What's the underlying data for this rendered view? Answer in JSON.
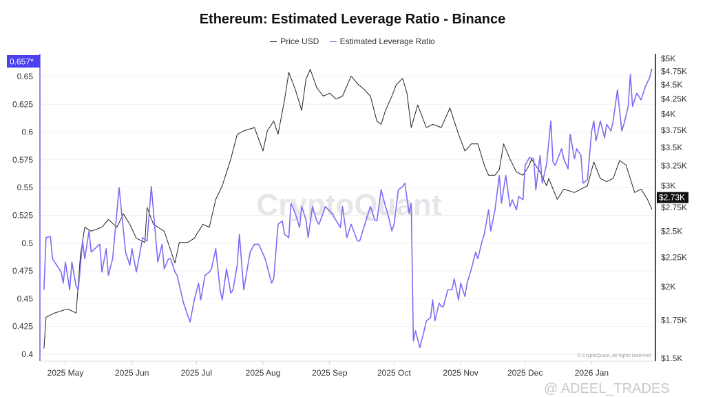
{
  "chart_data": {
    "type": "line",
    "title": "Ethereum: Estimated Leverage Ratio - Binance",
    "legend_position": "top",
    "grid": true,
    "x_ticks": [
      "2025 May",
      "2025 Jun",
      "2025 Jul",
      "2025 Aug",
      "2025 Sep",
      "2025 Oct",
      "2025 Nov",
      "2025 Dec",
      "2026 Jan"
    ],
    "x_tick_dates": [
      "2025-05-01",
      "2025-06-01",
      "2025-07-01",
      "2025-08-01",
      "2025-09-01",
      "2025-10-01",
      "2025-11-01",
      "2025-12-01",
      "2026-01-01"
    ],
    "left_axis": {
      "ticks": [
        "0.4",
        "0.425",
        "0.45",
        "0.475",
        "0.5",
        "0.525",
        "0.55",
        "0.575",
        "0.6",
        "0.625",
        "0.65"
      ],
      "range": [
        0.4,
        0.657
      ],
      "current_label": "0.657*"
    },
    "right_axis": {
      "scale": "log",
      "ticks": [
        "$1.5K",
        "$1.75K",
        "$2K",
        "$2.25K",
        "$2.5K",
        "$2.75K",
        "$3K",
        "$3.25K",
        "$3.5K",
        "$3.75K",
        "$4K",
        "$4.25K",
        "$4.5K",
        "$4.75K",
        "$5K"
      ],
      "tick_values": [
        1.5,
        1.75,
        2,
        2.25,
        2.5,
        2.75,
        3,
        3.25,
        3.5,
        3.75,
        4,
        4.25,
        4.5,
        4.75,
        5
      ],
      "range": [
        1.5,
        5
      ],
      "current_label": "$2.73K"
    },
    "series": [
      {
        "name": "Price USD",
        "axis": "right",
        "unit": "K USD",
        "color": "#222222",
        "points": [
          [
            "2025-04-21",
            1.56
          ],
          [
            "2025-04-22",
            1.77
          ],
          [
            "2025-04-26",
            1.8
          ],
          [
            "2025-05-02",
            1.83
          ],
          [
            "2025-05-06",
            1.8
          ],
          [
            "2025-05-08",
            2.27
          ],
          [
            "2025-05-10",
            2.54
          ],
          [
            "2025-05-13",
            2.5
          ],
          [
            "2025-05-18",
            2.54
          ],
          [
            "2025-05-21",
            2.62
          ],
          [
            "2025-05-25",
            2.54
          ],
          [
            "2025-05-28",
            2.68
          ],
          [
            "2025-05-31",
            2.57
          ],
          [
            "2025-06-03",
            2.43
          ],
          [
            "2025-06-07",
            2.39
          ],
          [
            "2025-06-08",
            2.75
          ],
          [
            "2025-06-11",
            2.57
          ],
          [
            "2025-06-16",
            2.5
          ],
          [
            "2025-06-21",
            2.2
          ],
          [
            "2025-06-23",
            2.39
          ],
          [
            "2025-06-27",
            2.39
          ],
          [
            "2025-06-30",
            2.43
          ],
          [
            "2025-07-04",
            2.57
          ],
          [
            "2025-07-07",
            2.54
          ],
          [
            "2025-07-10",
            2.84
          ],
          [
            "2025-07-13",
            3.0
          ],
          [
            "2025-07-17",
            3.34
          ],
          [
            "2025-07-20",
            3.69
          ],
          [
            "2025-07-23",
            3.74
          ],
          [
            "2025-07-28",
            3.79
          ],
          [
            "2025-08-01",
            3.45
          ],
          [
            "2025-08-03",
            3.74
          ],
          [
            "2025-08-06",
            3.89
          ],
          [
            "2025-08-08",
            3.69
          ],
          [
            "2025-08-11",
            4.23
          ],
          [
            "2025-08-13",
            4.73
          ],
          [
            "2025-08-16",
            4.42
          ],
          [
            "2025-08-19",
            4.06
          ],
          [
            "2025-08-21",
            4.6
          ],
          [
            "2025-08-23",
            4.79
          ],
          [
            "2025-08-26",
            4.45
          ],
          [
            "2025-08-29",
            4.3
          ],
          [
            "2025-09-01",
            4.35
          ],
          [
            "2025-09-04",
            4.25
          ],
          [
            "2025-09-07",
            4.3
          ],
          [
            "2025-09-11",
            4.66
          ],
          [
            "2025-09-14",
            4.52
          ],
          [
            "2025-09-17",
            4.42
          ],
          [
            "2025-09-20",
            4.3
          ],
          [
            "2025-09-23",
            3.89
          ],
          [
            "2025-09-25",
            3.84
          ],
          [
            "2025-09-27",
            4.06
          ],
          [
            "2025-09-30",
            4.3
          ],
          [
            "2025-10-02",
            4.5
          ],
          [
            "2025-10-05",
            4.62
          ],
          [
            "2025-10-07",
            4.35
          ],
          [
            "2025-10-09",
            3.79
          ],
          [
            "2025-10-12",
            4.15
          ],
          [
            "2025-10-16",
            3.79
          ],
          [
            "2025-10-19",
            3.84
          ],
          [
            "2025-10-23",
            3.79
          ],
          [
            "2025-10-27",
            4.1
          ],
          [
            "2025-10-31",
            3.69
          ],
          [
            "2025-11-03",
            3.45
          ],
          [
            "2025-11-06",
            3.55
          ],
          [
            "2025-11-09",
            3.55
          ],
          [
            "2025-11-12",
            3.26
          ],
          [
            "2025-11-14",
            3.13
          ],
          [
            "2025-11-17",
            3.13
          ],
          [
            "2025-11-19",
            3.2
          ],
          [
            "2025-11-21",
            3.55
          ],
          [
            "2025-11-24",
            3.34
          ],
          [
            "2025-11-27",
            3.17
          ],
          [
            "2025-11-30",
            3.13
          ],
          [
            "2025-12-03",
            3.26
          ],
          [
            "2025-12-04",
            3.34
          ],
          [
            "2025-12-08",
            3.17
          ],
          [
            "2025-12-11",
            3.0
          ],
          [
            "2025-12-12",
            3.09
          ],
          [
            "2025-12-16",
            2.84
          ],
          [
            "2025-12-19",
            2.96
          ],
          [
            "2025-12-24",
            2.92
          ],
          [
            "2025-12-30",
            3.0
          ],
          [
            "2026-01-02",
            3.3
          ],
          [
            "2026-01-05",
            3.09
          ],
          [
            "2026-01-08",
            3.05
          ],
          [
            "2026-01-11",
            3.09
          ],
          [
            "2026-01-14",
            3.32
          ],
          [
            "2026-01-17",
            3.26
          ],
          [
            "2026-01-21",
            2.92
          ],
          [
            "2026-01-24",
            2.96
          ],
          [
            "2026-01-27",
            2.84
          ],
          [
            "2026-01-29",
            2.73
          ]
        ]
      },
      {
        "name": "Estimated Leverage Ratio",
        "axis": "left",
        "color": "#7b6cf6",
        "points": [
          [
            "2025-04-21",
            0.458
          ],
          [
            "2025-04-22",
            0.505
          ],
          [
            "2025-04-24",
            0.506
          ],
          [
            "2025-04-25",
            0.486
          ],
          [
            "2025-04-29",
            0.474
          ],
          [
            "2025-04-30",
            0.464
          ],
          [
            "2025-05-01",
            0.483
          ],
          [
            "2025-05-03",
            0.458
          ],
          [
            "2025-05-04",
            0.483
          ],
          [
            "2025-05-06",
            0.461
          ],
          [
            "2025-05-07",
            0.458
          ],
          [
            "2025-05-09",
            0.502
          ],
          [
            "2025-05-10",
            0.486
          ],
          [
            "2025-05-12",
            0.511
          ],
          [
            "2025-05-13",
            0.492
          ],
          [
            "2025-05-17",
            0.499
          ],
          [
            "2025-05-18",
            0.474
          ],
          [
            "2025-05-20",
            0.495
          ],
          [
            "2025-05-21",
            0.471
          ],
          [
            "2025-05-23",
            0.486
          ],
          [
            "2025-05-26",
            0.55
          ],
          [
            "2025-05-29",
            0.492
          ],
          [
            "2025-05-31",
            0.48
          ],
          [
            "2025-06-01",
            0.495
          ],
          [
            "2025-06-03",
            0.474
          ],
          [
            "2025-06-06",
            0.505
          ],
          [
            "2025-06-08",
            0.502
          ],
          [
            "2025-06-10",
            0.551
          ],
          [
            "2025-06-13",
            0.483
          ],
          [
            "2025-06-15",
            0.499
          ],
          [
            "2025-06-16",
            0.477
          ],
          [
            "2025-06-18",
            0.486
          ],
          [
            "2025-06-19",
            0.486
          ],
          [
            "2025-06-21",
            0.474
          ],
          [
            "2025-06-22",
            0.471
          ],
          [
            "2025-06-25",
            0.446
          ],
          [
            "2025-06-28",
            0.429
          ],
          [
            "2025-06-30",
            0.449
          ],
          [
            "2025-07-02",
            0.464
          ],
          [
            "2025-07-03",
            0.449
          ],
          [
            "2025-07-05",
            0.471
          ],
          [
            "2025-07-07",
            0.474
          ],
          [
            "2025-07-08",
            0.477
          ],
          [
            "2025-07-10",
            0.495
          ],
          [
            "2025-07-12",
            0.458
          ],
          [
            "2025-07-13",
            0.449
          ],
          [
            "2025-07-15",
            0.477
          ],
          [
            "2025-07-17",
            0.455
          ],
          [
            "2025-07-18",
            0.458
          ],
          [
            "2025-07-20",
            0.48
          ],
          [
            "2025-07-21",
            0.508
          ],
          [
            "2025-07-23",
            0.458
          ],
          [
            "2025-07-26",
            0.492
          ],
          [
            "2025-07-28",
            0.499
          ],
          [
            "2025-07-30",
            0.499
          ],
          [
            "2025-08-02",
            0.486
          ],
          [
            "2025-08-05",
            0.464
          ],
          [
            "2025-08-06",
            0.468
          ],
          [
            "2025-08-08",
            0.517
          ],
          [
            "2025-08-10",
            0.52
          ],
          [
            "2025-08-11",
            0.508
          ],
          [
            "2025-08-13",
            0.505
          ],
          [
            "2025-08-14",
            0.536
          ],
          [
            "2025-08-16",
            0.527
          ],
          [
            "2025-08-18",
            0.514
          ],
          [
            "2025-08-19",
            0.533
          ],
          [
            "2025-08-21",
            0.521
          ],
          [
            "2025-08-22",
            0.505
          ],
          [
            "2025-08-24",
            0.533
          ],
          [
            "2025-08-26",
            0.52
          ],
          [
            "2025-08-27",
            0.517
          ],
          [
            "2025-08-29",
            0.527
          ],
          [
            "2025-08-30",
            0.533
          ],
          [
            "2025-09-02",
            0.527
          ],
          [
            "2025-09-06",
            0.514
          ],
          [
            "2025-09-07",
            0.533
          ],
          [
            "2025-09-09",
            0.505
          ],
          [
            "2025-09-11",
            0.517
          ],
          [
            "2025-09-14",
            0.502
          ],
          [
            "2025-09-15",
            0.502
          ],
          [
            "2025-09-19",
            0.527
          ],
          [
            "2025-09-20",
            0.533
          ],
          [
            "2025-09-22",
            0.521
          ],
          [
            "2025-09-23",
            0.52
          ],
          [
            "2025-09-25",
            0.548
          ],
          [
            "2025-09-27",
            0.533
          ],
          [
            "2025-09-28",
            0.527
          ],
          [
            "2025-09-30",
            0.511
          ],
          [
            "2025-10-01",
            0.517
          ],
          [
            "2025-10-03",
            0.548
          ],
          [
            "2025-10-05",
            0.551
          ],
          [
            "2025-10-06",
            0.554
          ],
          [
            "2025-10-08",
            0.527
          ],
          [
            "2025-10-09",
            0.536
          ],
          [
            "2025-10-10",
            0.412
          ],
          [
            "2025-10-11",
            0.421
          ],
          [
            "2025-10-13",
            0.406
          ],
          [
            "2025-10-15",
            0.421
          ],
          [
            "2025-10-16",
            0.43
          ],
          [
            "2025-10-18",
            0.433
          ],
          [
            "2025-10-19",
            0.449
          ],
          [
            "2025-10-20",
            0.43
          ],
          [
            "2025-10-22",
            0.446
          ],
          [
            "2025-10-23",
            0.443
          ],
          [
            "2025-10-24",
            0.443
          ],
          [
            "2025-10-26",
            0.458
          ],
          [
            "2025-10-28",
            0.458
          ],
          [
            "2025-10-29",
            0.468
          ],
          [
            "2025-10-31",
            0.449
          ],
          [
            "2025-11-01",
            0.464
          ],
          [
            "2025-11-03",
            0.452
          ],
          [
            "2025-11-04",
            0.464
          ],
          [
            "2025-11-06",
            0.477
          ],
          [
            "2025-11-08",
            0.492
          ],
          [
            "2025-11-09",
            0.486
          ],
          [
            "2025-11-11",
            0.502
          ],
          [
            "2025-11-12",
            0.508
          ],
          [
            "2025-11-14",
            0.53
          ],
          [
            "2025-11-15",
            0.511
          ],
          [
            "2025-11-17",
            0.53
          ],
          [
            "2025-11-19",
            0.561
          ],
          [
            "2025-11-20",
            0.536
          ],
          [
            "2025-11-22",
            0.561
          ],
          [
            "2025-11-24",
            0.533
          ],
          [
            "2025-11-25",
            0.539
          ],
          [
            "2025-11-27",
            0.53
          ],
          [
            "2025-11-28",
            0.542
          ],
          [
            "2025-11-30",
            0.539
          ],
          [
            "2025-12-01",
            0.57
          ],
          [
            "2025-12-03",
            0.577
          ],
          [
            "2025-12-05",
            0.576
          ],
          [
            "2025-12-06",
            0.548
          ],
          [
            "2025-12-08",
            0.579
          ],
          [
            "2025-12-09",
            0.554
          ],
          [
            "2025-12-11",
            0.571
          ],
          [
            "2025-12-13",
            0.61
          ],
          [
            "2025-12-14",
            0.573
          ],
          [
            "2025-12-15",
            0.57
          ],
          [
            "2025-12-18",
            0.585
          ],
          [
            "2025-12-19",
            0.576
          ],
          [
            "2025-12-21",
            0.567
          ],
          [
            "2025-12-22",
            0.598
          ],
          [
            "2025-12-24",
            0.576
          ],
          [
            "2025-12-25",
            0.585
          ],
          [
            "2025-12-27",
            0.579
          ],
          [
            "2025-12-28",
            0.554
          ],
          [
            "2025-12-30",
            0.557
          ],
          [
            "2026-01-01",
            0.601
          ],
          [
            "2026-01-02",
            0.61
          ],
          [
            "2026-01-03",
            0.592
          ],
          [
            "2026-01-05",
            0.61
          ],
          [
            "2026-01-07",
            0.595
          ],
          [
            "2026-01-08",
            0.607
          ],
          [
            "2026-01-10",
            0.601
          ],
          [
            "2026-01-11",
            0.61
          ],
          [
            "2026-01-13",
            0.638
          ],
          [
            "2026-01-15",
            0.601
          ],
          [
            "2026-01-16",
            0.607
          ],
          [
            "2026-01-18",
            0.623
          ],
          [
            "2026-01-19",
            0.652
          ],
          [
            "2026-01-20",
            0.623
          ],
          [
            "2026-01-22",
            0.635
          ],
          [
            "2026-01-24",
            0.629
          ],
          [
            "2026-01-26",
            0.641
          ],
          [
            "2026-01-28",
            0.649
          ],
          [
            "2026-01-29",
            0.657
          ]
        ]
      }
    ]
  },
  "watermark": "CryptoQuant",
  "copyright": "© CryptoQuant. All rights reserved",
  "overlay_handle": "@ ADEEL_TRADES"
}
